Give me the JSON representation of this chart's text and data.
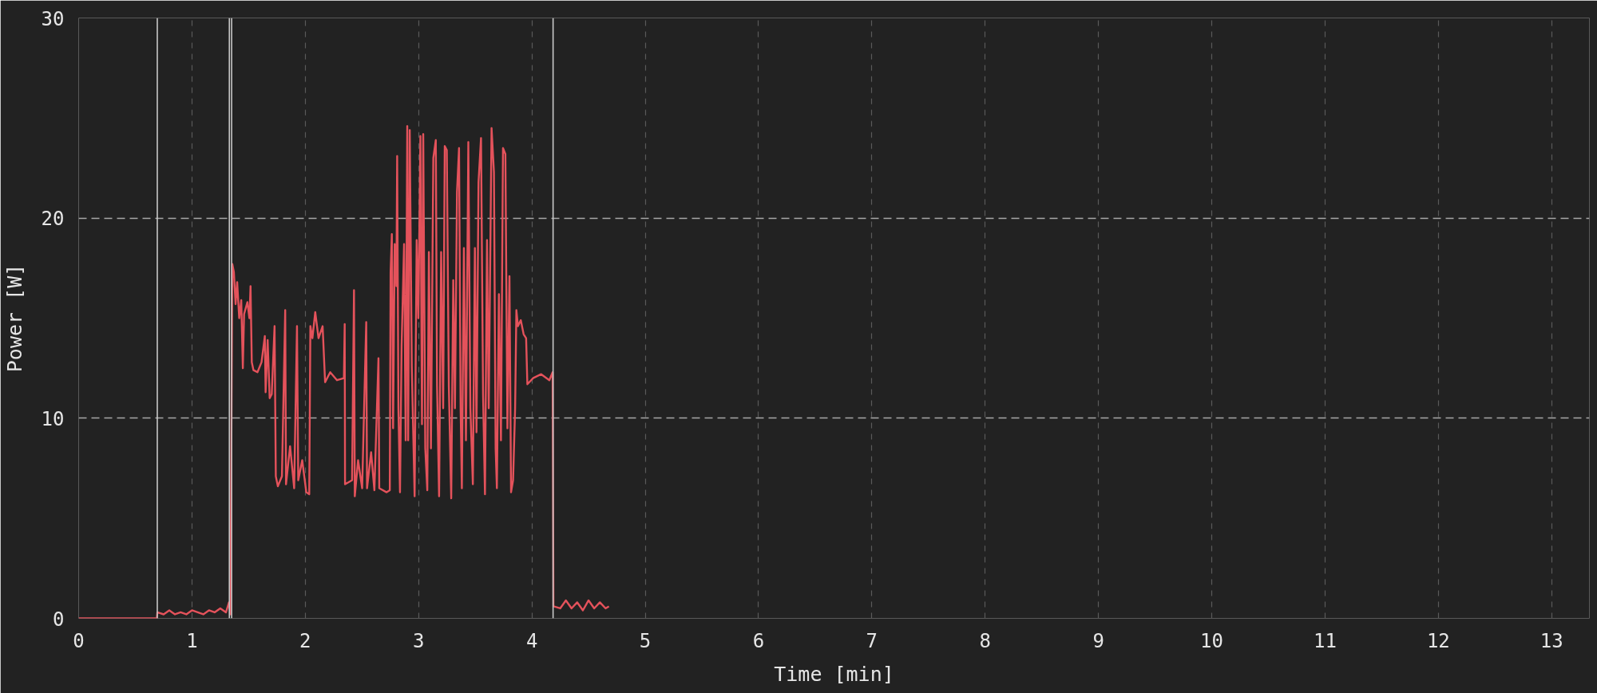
{
  "chart_data": {
    "type": "line",
    "xlabel": "Time [min]",
    "ylabel": "Power [W]",
    "xlim": [
      0,
      13.333
    ],
    "ylim": [
      0,
      30
    ],
    "xticks": [
      0,
      1,
      2,
      3,
      4,
      5,
      6,
      7,
      8,
      9,
      10,
      11,
      12,
      13
    ],
    "yticks": [
      0,
      10,
      20,
      30
    ],
    "grid": true,
    "ref_lines": [
      {
        "axis": "x",
        "value": 0.694,
        "color": "#c8c8c8"
      },
      {
        "axis": "x",
        "value": 1.33,
        "color": "#c8c8c8"
      },
      {
        "axis": "x",
        "value": 1.35,
        "color": "#c8c8c8"
      },
      {
        "axis": "x",
        "value": 4.187,
        "color": "#c8c8c8"
      }
    ],
    "x": [
      0,
      0.69,
      0.695,
      0.75,
      0.8,
      0.85,
      0.9,
      0.95,
      1.0,
      1.05,
      1.1,
      1.15,
      1.2,
      1.25,
      1.3,
      1.327,
      1.34,
      1.356,
      1.37,
      1.385,
      1.399,
      1.417,
      1.435,
      1.449,
      1.46,
      1.489,
      1.507,
      1.517,
      1.528,
      1.543,
      1.578,
      1.614,
      1.643,
      1.65,
      1.668,
      1.686,
      1.704,
      1.729,
      1.74,
      1.758,
      1.794,
      1.823,
      1.83,
      1.866,
      1.902,
      1.927,
      1.938,
      1.973,
      2.009,
      2.035,
      2.045,
      2.063,
      2.088,
      2.117,
      2.153,
      2.175,
      2.22,
      2.28,
      2.341,
      2.348,
      2.351,
      2.413,
      2.43,
      2.437,
      2.466,
      2.502,
      2.538,
      2.545,
      2.581,
      2.61,
      2.646,
      2.653,
      2.718,
      2.746,
      2.753,
      2.764,
      2.775,
      2.789,
      2.804,
      2.811,
      2.822,
      2.836,
      2.85,
      2.872,
      2.886,
      2.9,
      2.908,
      2.922,
      2.94,
      2.965,
      2.983,
      2.998,
      3.016,
      3.03,
      3.041,
      3.059,
      3.077,
      3.091,
      3.109,
      3.13,
      3.152,
      3.163,
      3.181,
      3.199,
      3.217,
      3.231,
      3.249,
      3.267,
      3.288,
      3.306,
      3.321,
      3.339,
      3.357,
      3.371,
      3.382,
      3.4,
      3.418,
      3.439,
      3.457,
      3.479,
      3.497,
      3.511,
      3.529,
      3.551,
      3.569,
      3.586,
      3.604,
      3.619,
      3.644,
      3.665,
      3.68,
      3.691,
      3.709,
      3.727,
      3.745,
      3.766,
      3.784,
      3.802,
      3.816,
      3.834,
      3.852,
      3.863,
      3.877,
      3.902,
      3.927,
      3.949,
      3.96,
      4.01,
      4.082,
      4.154,
      4.183,
      4.19,
      4.25,
      4.3,
      4.35,
      4.4,
      4.45,
      4.5,
      4.55,
      4.6,
      4.65,
      4.68
    ],
    "series": [
      {
        "color": "#e4525b",
        "values": [
          0,
          0,
          0.3,
          0.2,
          0.4,
          0.2,
          0.3,
          0.2,
          0.4,
          0.3,
          0.2,
          0.4,
          0.3,
          0.5,
          0.3,
          0.8,
          0.2,
          17.7,
          17.3,
          15.7,
          16.8,
          15.0,
          15.9,
          12.5,
          15.2,
          15.8,
          15.0,
          16.6,
          12.8,
          12.4,
          12.3,
          12.8,
          14.1,
          11.3,
          13.9,
          11.0,
          11.2,
          14.6,
          7.1,
          6.6,
          7.1,
          15.4,
          6.7,
          8.6,
          6.5,
          14.6,
          6.9,
          7.9,
          6.3,
          6.2,
          14.6,
          14.0,
          15.3,
          14.0,
          14.6,
          11.8,
          12.3,
          11.9,
          12.0,
          14.7,
          6.7,
          6.9,
          16.4,
          6.1,
          7.9,
          6.5,
          14.8,
          6.5,
          8.3,
          6.4,
          13.0,
          6.5,
          6.3,
          6.4,
          17.3,
          19.2,
          9.5,
          18.7,
          16.6,
          23.1,
          10.5,
          6.3,
          13.6,
          18.7,
          8.9,
          24.6,
          8.9,
          24.4,
          12.6,
          6.1,
          18.9,
          15.0,
          24.1,
          9.7,
          24.2,
          8.5,
          6.4,
          18.3,
          8.5,
          23.0,
          23.9,
          11.6,
          6.1,
          18.3,
          10.5,
          23.6,
          23.4,
          11.6,
          6.0,
          16.9,
          10.5,
          21.3,
          23.5,
          10.5,
          6.5,
          18.5,
          8.9,
          23.8,
          10.5,
          6.7,
          18.5,
          9.3,
          21.8,
          24.0,
          11.2,
          6.2,
          18.9,
          10.5,
          24.5,
          22.3,
          8.5,
          6.5,
          16.2,
          8.9,
          23.5,
          23.2,
          9.5,
          17.1,
          6.3,
          6.9,
          10.5,
          15.4,
          14.6,
          14.9,
          14.2,
          14.0,
          11.7,
          12.0,
          12.2,
          11.9,
          12.3,
          0.6,
          0.5,
          0.9,
          0.5,
          0.8,
          0.4,
          0.9,
          0.5,
          0.8,
          0.5,
          0.6
        ]
      }
    ]
  }
}
